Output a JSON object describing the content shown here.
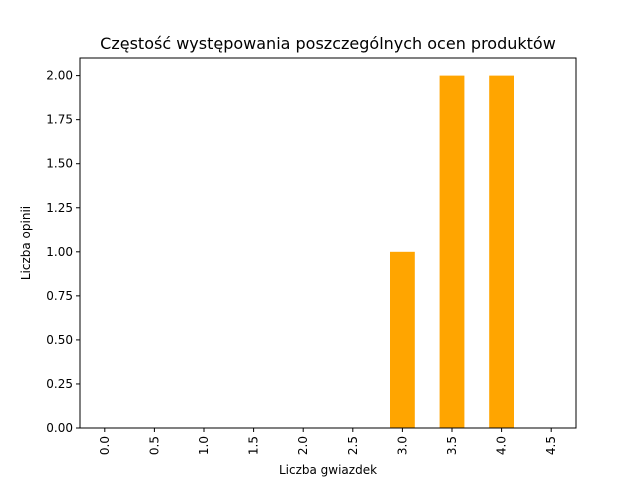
{
  "chart_data": {
    "type": "bar",
    "title": "Częstość występowania poszczególnych ocen produktów",
    "xlabel": "Liczba gwiazdek",
    "ylabel": "Liczba opinii",
    "categories": [
      "0.0",
      "0.5",
      "1.0",
      "1.5",
      "2.0",
      "2.5",
      "3.0",
      "3.5",
      "4.0",
      "4.5"
    ],
    "values": [
      0,
      0,
      0,
      0,
      0,
      0,
      1,
      2,
      2,
      0
    ],
    "ylim": [
      0,
      2.1
    ],
    "yticks": [
      "0.00",
      "0.25",
      "0.50",
      "0.75",
      "1.00",
      "1.25",
      "1.50",
      "1.75",
      "2.00"
    ],
    "bar_color": "#ffa500",
    "grid": false,
    "legend": "none"
  }
}
